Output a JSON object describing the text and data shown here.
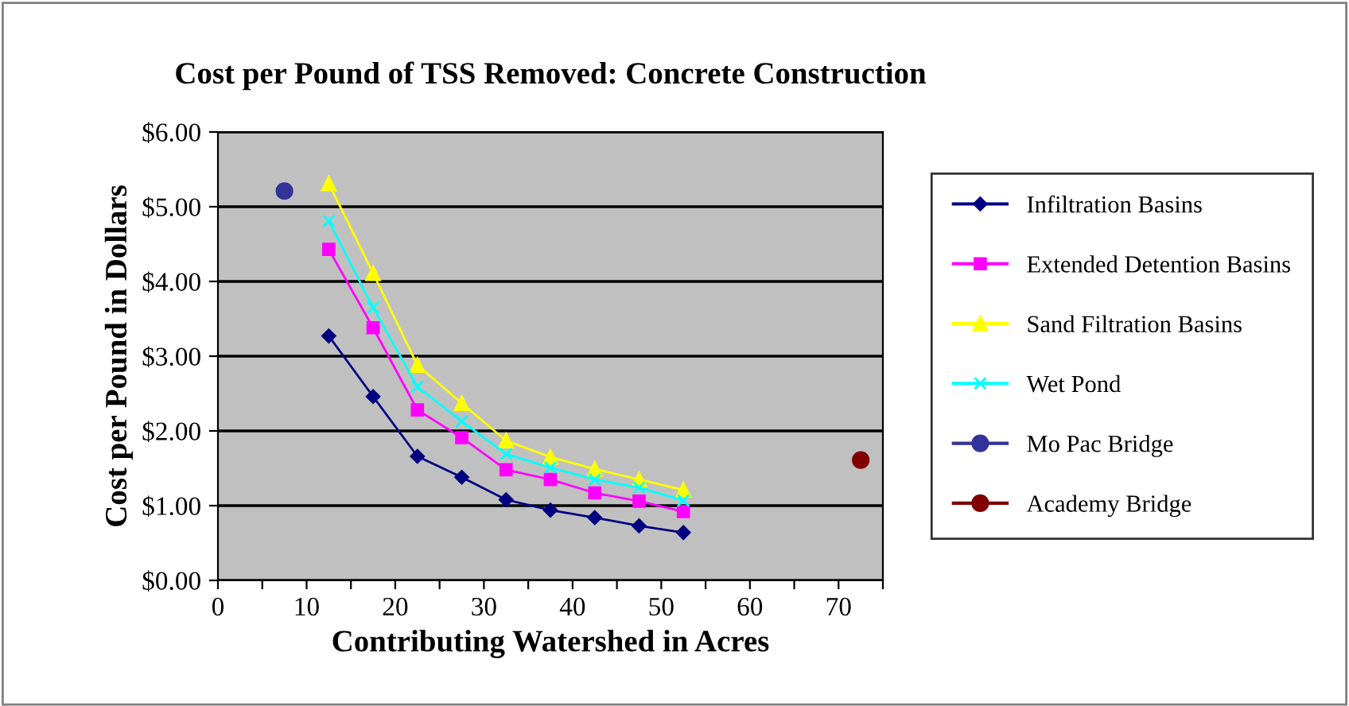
{
  "chart_data": {
    "type": "line",
    "title": "Cost per Pound of TSS Removed: Concrete Construction",
    "xlabel": "Contributing Watershed in Acres",
    "ylabel": "Cost per Pound in Dollars",
    "xlim": [
      0,
      75
    ],
    "xticks": [
      0,
      {
        "value": 5,
        "label": null
      },
      10,
      {
        "value": 15,
        "label": null
      },
      20,
      {
        "value": 25,
        "label": null
      },
      30,
      {
        "value": 35,
        "label": null
      },
      40,
      {
        "value": 45,
        "label": null
      },
      50,
      {
        "value": 55,
        "label": null
      },
      60,
      {
        "value": 65,
        "label": null
      },
      70,
      {
        "value": 75,
        "label": null
      }
    ],
    "ylim": [
      0,
      6
    ],
    "yticks": [
      {
        "value": 0,
        "label": "$0.00"
      },
      {
        "value": 1,
        "label": "$1.00"
      },
      {
        "value": 2,
        "label": "$2.00"
      },
      {
        "value": 3,
        "label": "$3.00"
      },
      {
        "value": 4,
        "label": "$4.00"
      },
      {
        "value": 5,
        "label": "$5.00"
      },
      {
        "value": 6,
        "label": "$6.00"
      }
    ],
    "grid": "y",
    "legend": "right",
    "line_style": "solid",
    "series": [
      {
        "name": "Infiltration Basins",
        "color": "#000080",
        "marker": "diamond",
        "x": [
          12.5,
          17.5,
          22.5,
          27.5,
          32.5,
          37.5,
          42.5,
          47.5,
          52.5
        ],
        "values": [
          3.27,
          2.46,
          1.66,
          1.38,
          1.08,
          0.94,
          0.84,
          0.73,
          0.64
        ]
      },
      {
        "name": "Extended Detention Basins",
        "color": "#ff00ff",
        "marker": "square",
        "x": [
          12.5,
          17.5,
          22.5,
          27.5,
          32.5,
          37.5,
          42.5,
          47.5,
          52.5
        ],
        "values": [
          4.43,
          3.38,
          2.28,
          1.91,
          1.48,
          1.35,
          1.17,
          1.06,
          0.92
        ]
      },
      {
        "name": "Sand Filtration Basins",
        "color": "#ffff00",
        "marker": "triangle",
        "x": [
          12.5,
          17.5,
          22.5,
          27.5,
          32.5,
          37.5,
          42.5,
          47.5,
          52.5
        ],
        "values": [
          5.31,
          4.11,
          2.88,
          2.37,
          1.87,
          1.65,
          1.49,
          1.35,
          1.21
        ]
      },
      {
        "name": "Wet Pond",
        "color": "#00ffff",
        "marker": "cross",
        "x": [
          12.5,
          17.5,
          22.5,
          27.5,
          32.5,
          37.5,
          42.5,
          47.5,
          52.5
        ],
        "values": [
          4.81,
          3.65,
          2.59,
          2.13,
          1.69,
          1.51,
          1.35,
          1.24,
          1.07
        ]
      },
      {
        "name": "Mo Pac Bridge",
        "color": "#333399",
        "marker": "circle",
        "x": [
          7.5
        ],
        "values": [
          5.21
        ]
      },
      {
        "name": "Academy Bridge",
        "color": "#800000",
        "marker": "circle",
        "x": [
          72.5
        ],
        "values": [
          1.61
        ]
      }
    ]
  }
}
